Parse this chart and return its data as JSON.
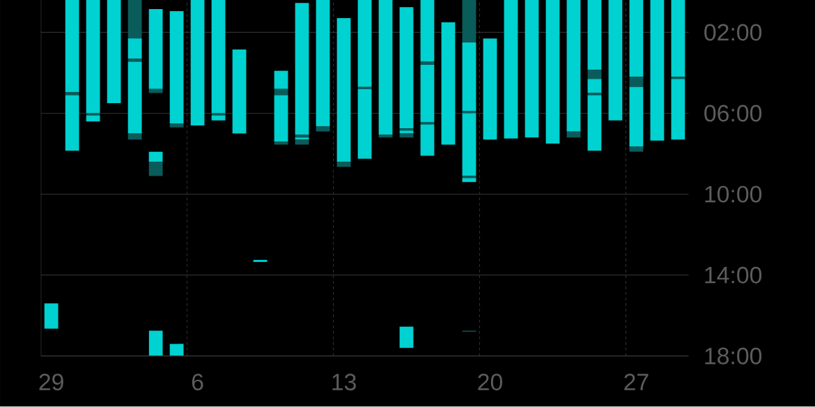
{
  "chart_data": {
    "type": "bar",
    "grid": true,
    "categories": [
      "29",
      null,
      null,
      null,
      null,
      null,
      null,
      "6",
      null,
      null,
      null,
      null,
      null,
      null,
      "13",
      null,
      null,
      null,
      null,
      null,
      null,
      "20",
      null,
      null,
      null,
      null,
      null,
      null,
      "27",
      null,
      null
    ],
    "ylim": [
      18,
      0.4
    ],
    "yticks": [
      {
        "value": 2,
        "label": "02:00"
      },
      {
        "value": 6,
        "label": "06:00"
      },
      {
        "value": 10,
        "label": "10:00"
      },
      {
        "value": 14,
        "label": "14:00"
      },
      {
        "value": 18,
        "label": "18:00"
      }
    ],
    "series": [
      {
        "color": "#00d1d1",
        "base": [
          15.4,
          0.4,
          0.4,
          0.4,
          2.3,
          0.85,
          0.95,
          0.4,
          0.4,
          2.85,
          13.25,
          3.9,
          0.55,
          0.4,
          1.3,
          0.4,
          0.4,
          0.75,
          0.4,
          1.5,
          2.5,
          2.3,
          0.4,
          0.4,
          0.4,
          0.4,
          0.4,
          0.4,
          0.4,
          0.4,
          0.4
        ],
        "values": [
          1.25,
          4.55,
          5.6,
          5.1,
          1.0,
          3.95,
          5.55,
          6.2,
          5.6,
          4.15,
          0.1,
          0.9,
          6.5,
          6.25,
          7.1,
          4.3,
          6.65,
          6.0,
          3.05,
          6.05,
          3.4,
          5.0,
          6.85,
          6.8,
          7.1,
          6.5,
          3.45,
          5.95,
          3.8,
          6.95,
          3.8
        ]
      },
      {
        "color": "#00d1d1",
        "base": [
          null,
          5.1,
          6.1,
          null,
          3.45,
          7.9,
          17.4,
          null,
          6.1,
          null,
          null,
          5.1,
          7.2,
          null,
          null,
          4.8,
          null,
          6.85,
          3.6,
          null,
          6.0,
          null,
          null,
          null,
          null,
          null,
          4.3,
          null,
          4.7,
          null,
          4.3
        ],
        "values": [
          null,
          2.75,
          0.3,
          null,
          3.55,
          0.5,
          0.6,
          null,
          0.25,
          null,
          null,
          2.3,
          0.1,
          null,
          null,
          3.45,
          null,
          0.15,
          2.85,
          null,
          3.1,
          null,
          null,
          null,
          null,
          null,
          0.7,
          null,
          2.95,
          null,
          3.0
        ]
      },
      {
        "color": "#00d1d1",
        "base": [
          null,
          null,
          null,
          null,
          null,
          16.75,
          null,
          null,
          null,
          null,
          null,
          null,
          null,
          null,
          null,
          null,
          null,
          16.55,
          6.55,
          null,
          9.2,
          null,
          null,
          null,
          null,
          null,
          5.1,
          null,
          null,
          null,
          null
        ],
        "values": [
          null,
          null,
          null,
          null,
          null,
          1.25,
          null,
          null,
          null,
          null,
          null,
          null,
          null,
          null,
          null,
          null,
          null,
          1.05,
          1.55,
          null,
          0.2,
          null,
          null,
          null,
          null,
          null,
          2.75,
          null,
          null,
          null,
          null
        ]
      },
      {
        "color": "#0a5c5a",
        "base": [
          null,
          4.95,
          6.0,
          null,
          0.4,
          4.8,
          6.5,
          null,
          6.0,
          null,
          null,
          4.8,
          7.05,
          6.65,
          8.4,
          4.7,
          7.05,
          6.75,
          3.45,
          null,
          0.4,
          null,
          null,
          null,
          null,
          6.9,
          3.85,
          null,
          4.2,
          null,
          4.2
        ],
        "values": [
          null,
          0.15,
          0.1,
          null,
          1.9,
          0.2,
          0.2,
          null,
          0.1,
          null,
          null,
          0.3,
          0.15,
          0.25,
          0.25,
          0.1,
          0.15,
          0.1,
          0.15,
          null,
          2.1,
          null,
          null,
          null,
          null,
          0.3,
          0.45,
          null,
          0.5,
          null,
          0.1
        ]
      },
      {
        "color": "#0a5c5a",
        "base": [
          null,
          null,
          null,
          null,
          3.3,
          8.4,
          null,
          null,
          null,
          null,
          null,
          7.4,
          7.3,
          null,
          null,
          null,
          null,
          7.0,
          6.45,
          null,
          5.9,
          null,
          null,
          null,
          null,
          null,
          5.0,
          null,
          7.65,
          null,
          null
        ],
        "values": [
          null,
          null,
          null,
          null,
          0.15,
          0.7,
          null,
          null,
          null,
          null,
          null,
          0.15,
          0.25,
          null,
          null,
          null,
          null,
          0.2,
          0.1,
          null,
          0.1,
          null,
          null,
          null,
          null,
          null,
          0.1,
          null,
          0.25,
          null,
          null
        ]
      },
      {
        "color": "#0a5c5a",
        "base": [
          null,
          null,
          null,
          null,
          7.0,
          null,
          null,
          null,
          null,
          null,
          null,
          null,
          null,
          null,
          null,
          null,
          null,
          null,
          null,
          null,
          9.1,
          null,
          null,
          null,
          null,
          null,
          null,
          null,
          null,
          null,
          null
        ],
        "values": [
          null,
          null,
          null,
          null,
          0.3,
          null,
          null,
          null,
          null,
          null,
          null,
          null,
          null,
          null,
          null,
          null,
          null,
          null,
          null,
          null,
          0.1,
          null,
          null,
          null,
          null,
          null,
          null,
          null,
          null,
          null,
          null
        ]
      },
      {
        "color": "#0a5c5a",
        "base": [
          null,
          null,
          null,
          null,
          null,
          null,
          null,
          null,
          null,
          null,
          null,
          null,
          null,
          null,
          null,
          null,
          null,
          null,
          null,
          null,
          16.75,
          null,
          null,
          null,
          null,
          null,
          null,
          null,
          null,
          null,
          null
        ],
        "values": [
          null,
          null,
          null,
          null,
          null,
          null,
          null,
          null,
          null,
          null,
          null,
          null,
          null,
          null,
          null,
          null,
          null,
          null,
          null,
          null,
          0.05,
          null,
          null,
          null,
          null,
          null,
          null,
          null,
          null,
          null,
          null
        ]
      }
    ]
  }
}
